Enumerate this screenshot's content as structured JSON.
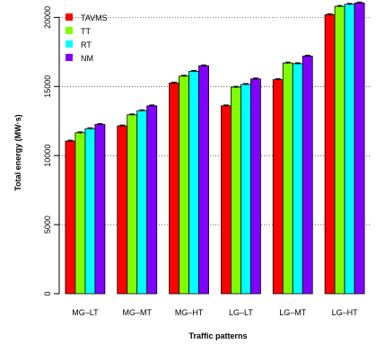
{
  "chart_data": {
    "type": "bar",
    "xlabel": "Traffic patterns",
    "ylabel": "Total energy (MW·s)",
    "categories": [
      "MG–LT",
      "MG–MT",
      "MG–HT",
      "LG–LT",
      "LG–MT",
      "LG–HT"
    ],
    "ylim": [
      0,
      21000
    ],
    "yticks": [
      0,
      5000,
      10000,
      15000,
      20000
    ],
    "grid": "dotted horizontal",
    "legend_position": "top-left",
    "series": [
      {
        "name": "TAVMS",
        "color": "#ff0000",
        "values": [
          11050,
          12150,
          15250,
          13600,
          15500,
          20200
        ]
      },
      {
        "name": "TT",
        "color": "#80ff00",
        "values": [
          11650,
          12950,
          15750,
          14950,
          16700,
          20800
        ]
      },
      {
        "name": "RT",
        "color": "#00ffff",
        "values": [
          11950,
          13250,
          16100,
          15150,
          16650,
          20950
        ]
      },
      {
        "name": "NM",
        "color": "#8000ff",
        "values": [
          12250,
          13600,
          16500,
          15550,
          17200,
          21050
        ]
      }
    ]
  }
}
